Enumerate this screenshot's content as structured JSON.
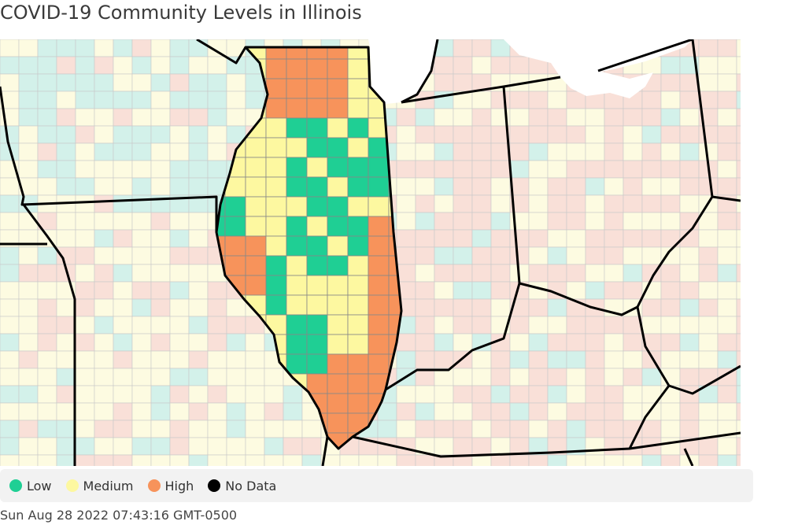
{
  "title": "COVID-19 Community Levels in Illinois",
  "colors": {
    "low": "#1fcf94",
    "medium": "#fdf8a0",
    "high": "#f7935b",
    "no_data": "#000000",
    "bg_low": "#d3f1ea",
    "bg_medium": "#fdfbe1",
    "bg_high": "#f9e0d8",
    "county_border": "#c9c9c9",
    "state_border": "#000000"
  },
  "legend": [
    {
      "key": "low",
      "label": "Low",
      "color": "#1fcf94"
    },
    {
      "key": "medium",
      "label": "Medium",
      "color": "#fdf8a0"
    },
    {
      "key": "high",
      "label": "High",
      "color": "#f7935b"
    },
    {
      "key": "no_data",
      "label": "No Data",
      "color": "#000000"
    }
  ],
  "timestamp": "Sun Aug 28 2022 07:43:16 GMT-0500"
}
